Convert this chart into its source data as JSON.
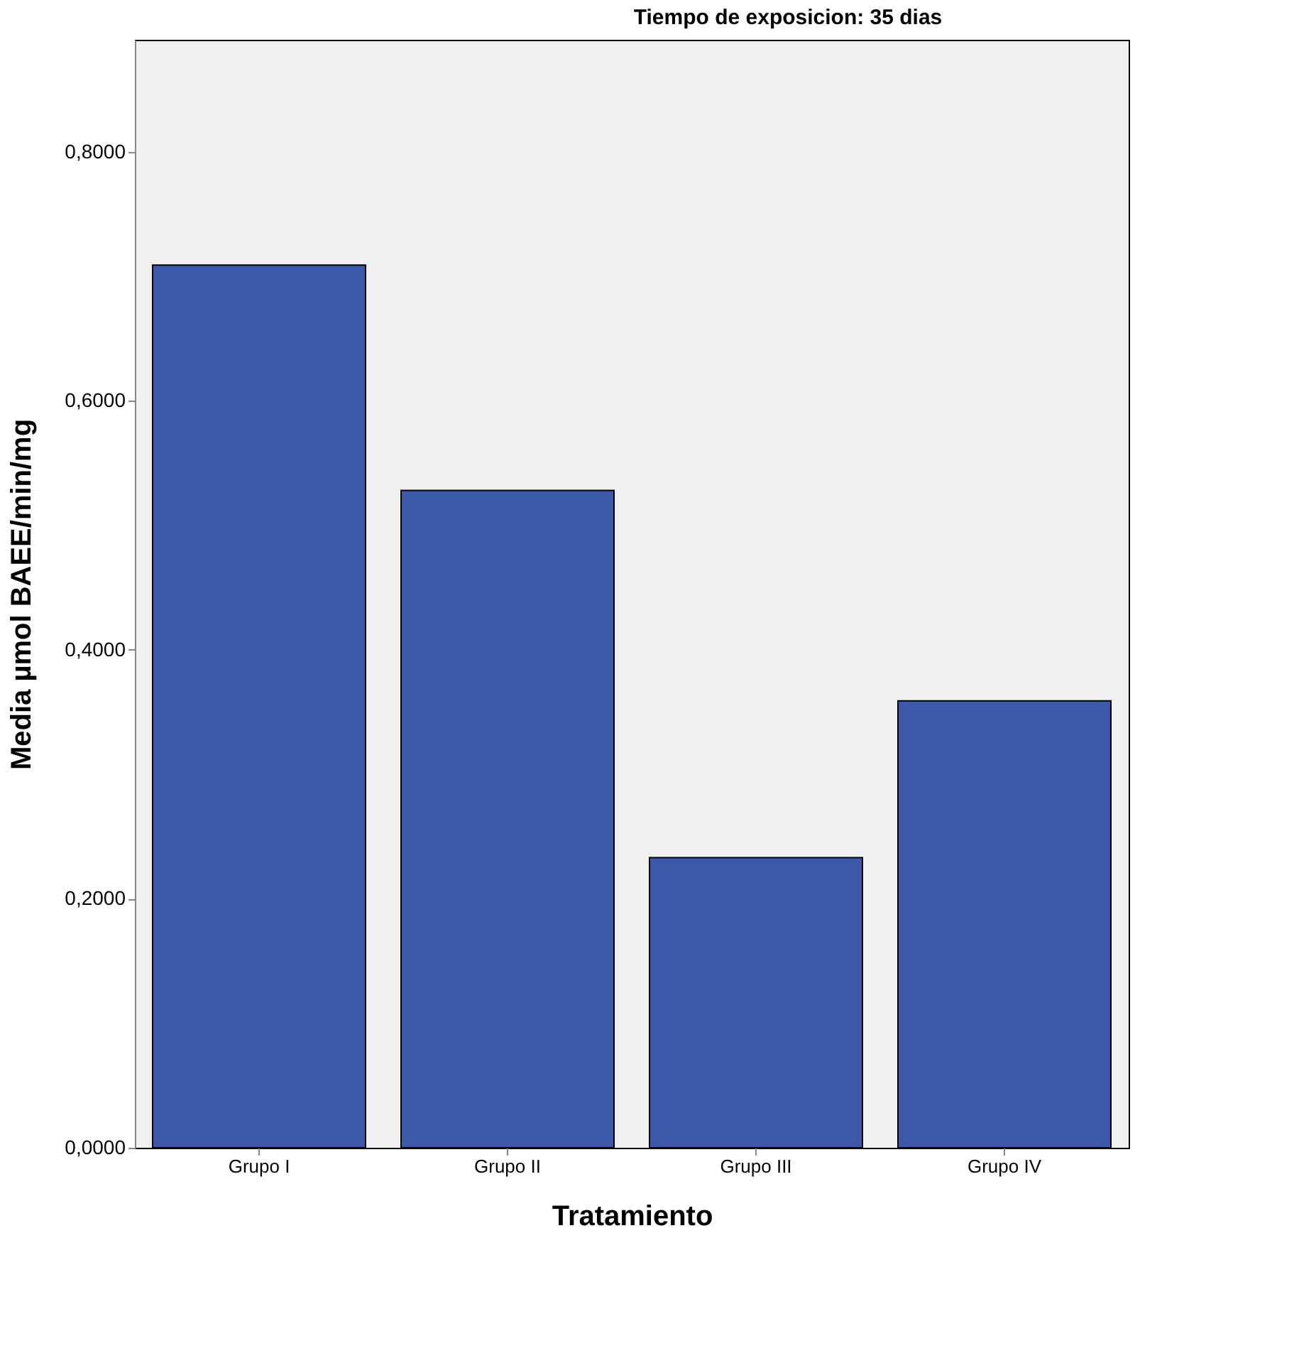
{
  "chart_data": {
    "type": "bar",
    "title": "Tiempo de exposicion: 35 dias",
    "xlabel": "Tratamiento",
    "ylabel": "Media µmol BAEE/min/mg",
    "categories": [
      "Grupo I",
      "Grupo II",
      "Grupo III",
      "Grupo IV"
    ],
    "values": [
      0.709,
      0.528,
      0.233,
      0.359
    ],
    "color": "#3c58a8",
    "ylim": [
      0,
      0.89
    ],
    "yticks": [
      {
        "value": 0,
        "label": "0,0000"
      },
      {
        "value": 0.2,
        "label": "0,2000"
      },
      {
        "value": 0.4,
        "label": "0,4000"
      },
      {
        "value": 0.6,
        "label": "0,6000"
      },
      {
        "value": 0.8,
        "label": "0,8000"
      }
    ],
    "grid": false
  }
}
